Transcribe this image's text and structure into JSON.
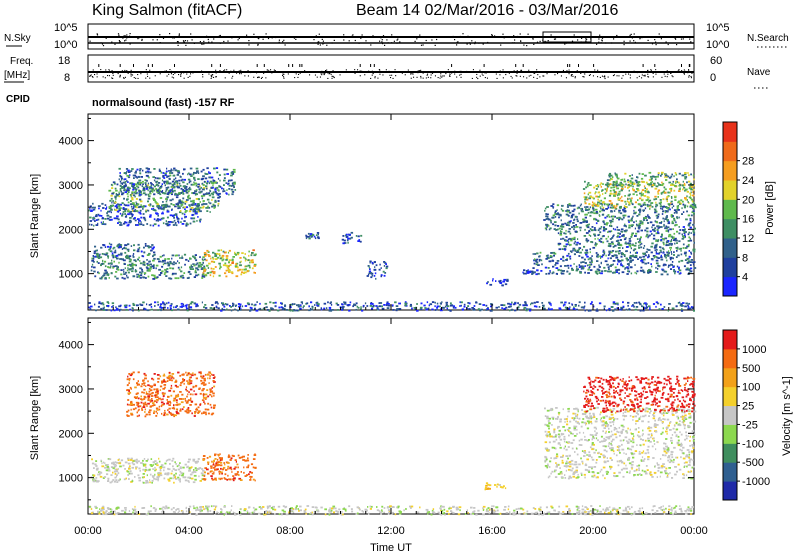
{
  "header": {
    "title": "King Salmon (fitACF)",
    "beam_info": "Beam 14 02/Mar/2016 - 03/Mar/2016"
  },
  "strip_labels": {
    "nsky": "N.Sky",
    "nsky_ticks": [
      "10^5",
      "10^0"
    ],
    "nsearch": "N.Search",
    "nsearch_ticks": [
      "10^5",
      "10^0"
    ],
    "freq_line1": "Freq.",
    "freq_line2": "[MHz]",
    "freq_ticks": [
      "18",
      "8"
    ],
    "nave": "Nave",
    "nave_ticks": [
      "60",
      "0"
    ],
    "cpid": "CPID",
    "cpid_text": "normalsound (fast) -157 RF"
  },
  "colors": {
    "power_scale": [
      "#1a25ff",
      "#1f3f9e",
      "#30608a",
      "#3e8e63",
      "#5fb94c",
      "#e2d22a",
      "#f59d1f",
      "#ef6a1a",
      "#e8321a"
    ],
    "velocity_scale": [
      "#e41a1a",
      "#f46b12",
      "#f2a119",
      "#f4d02c",
      "#c6c6c6",
      "#8cd84f",
      "#3f8e5e",
      "#2f5f90",
      "#1f2aa8"
    ]
  },
  "chart_data": [
    {
      "type": "heatmap",
      "name": "power-panel",
      "x": [
        "00:00",
        "04:00",
        "08:00",
        "12:00",
        "16:00",
        "20:00",
        "00:00"
      ],
      "xlabel": "Time UT",
      "ylabel": "Slant Range [km]",
      "yticks": [
        "1000",
        "2000",
        "3000",
        "4000"
      ],
      "xlim": [
        0,
        24
      ],
      "ylim": [
        180,
        4600
      ],
      "colorbar": {
        "label": "Power [dB]",
        "ticks": [
          "4",
          "8",
          "12",
          "16",
          "20",
          "24",
          "28"
        ],
        "range": [
          0,
          30
        ]
      },
      "regions": [
        {
          "t0": 0.1,
          "t1": 4.6,
          "r0": 900,
          "r1": 1450,
          "dominant": 10
        },
        {
          "t0": 0.2,
          "t1": 2.6,
          "r0": 1400,
          "r1": 1700,
          "dominant": 7
        },
        {
          "t0": 0.0,
          "t1": 4.5,
          "r0": 2100,
          "r1": 2600,
          "dominant": 6
        },
        {
          "t0": 0.8,
          "t1": 5.2,
          "r0": 2400,
          "r1": 3100,
          "dominant": 12
        },
        {
          "t0": 1.2,
          "t1": 5.8,
          "r0": 2800,
          "r1": 3400,
          "dominant": 8
        },
        {
          "t0": 4.5,
          "t1": 6.6,
          "r0": 950,
          "r1": 1550,
          "dominant": 18
        },
        {
          "t0": 8.6,
          "t1": 9.1,
          "r0": 1800,
          "r1": 1950,
          "dominant": 7
        },
        {
          "t0": 10.0,
          "t1": 10.8,
          "r0": 1700,
          "r1": 1950,
          "dominant": 7
        },
        {
          "t0": 11.0,
          "t1": 11.8,
          "r0": 900,
          "r1": 1300,
          "dominant": 6
        },
        {
          "t0": 15.7,
          "t1": 16.6,
          "r0": 750,
          "r1": 900,
          "dominant": 5
        },
        {
          "t0": 17.2,
          "t1": 17.8,
          "r0": 1000,
          "r1": 1100,
          "dominant": 5
        },
        {
          "t0": 17.6,
          "t1": 24.0,
          "r0": 1000,
          "r1": 1500,
          "dominant": 8
        },
        {
          "t0": 18.6,
          "t1": 24.0,
          "r0": 1500,
          "r1": 2000,
          "dominant": 9
        },
        {
          "t0": 18.0,
          "t1": 24.0,
          "r0": 2000,
          "r1": 2600,
          "dominant": 9
        },
        {
          "t0": 19.6,
          "t1": 24.0,
          "r0": 2500,
          "r1": 3100,
          "dominant": 16
        },
        {
          "t0": 20.5,
          "t1": 24.0,
          "r0": 3000,
          "r1": 3300,
          "dominant": 13
        },
        {
          "t0": 0.0,
          "t1": 24.0,
          "r0": 180,
          "r1": 380,
          "dominant": 6
        }
      ]
    },
    {
      "type": "heatmap",
      "name": "velocity-panel",
      "x": [
        "00:00",
        "04:00",
        "08:00",
        "12:00",
        "16:00",
        "20:00",
        "00:00"
      ],
      "xlabel": "Time UT",
      "ylabel": "Slant Range [km]",
      "yticks": [
        "1000",
        "2000",
        "3000",
        "4000"
      ],
      "xlim": [
        0,
        24
      ],
      "ylim": [
        180,
        4600
      ],
      "colorbar": {
        "label": "Velocity [m s^-1]",
        "ticks": [
          "1000",
          "500",
          "100",
          "25",
          "-25",
          "-100",
          "-500",
          "-1000"
        ]
      },
      "regions": [
        {
          "t0": 0.1,
          "t1": 4.6,
          "r0": 900,
          "r1": 1450,
          "dominant": "gray"
        },
        {
          "t0": 4.5,
          "t1": 6.6,
          "r0": 950,
          "r1": 1550,
          "dominant": "orange"
        },
        {
          "t0": 1.5,
          "t1": 5.0,
          "r0": 2400,
          "r1": 3400,
          "dominant": "orange"
        },
        {
          "t0": 18.0,
          "t1": 24.0,
          "r0": 1000,
          "r1": 2600,
          "dominant": "gray"
        },
        {
          "t0": 19.6,
          "t1": 24.0,
          "r0": 2500,
          "r1": 3300,
          "dominant": "red"
        },
        {
          "t0": 15.7,
          "t1": 16.6,
          "r0": 750,
          "r1": 900,
          "dominant": "yellow"
        },
        {
          "t0": 0.0,
          "t1": 24.0,
          "r0": 180,
          "r1": 380,
          "dominant": "gray"
        }
      ]
    }
  ],
  "axes": {
    "time_label": "Time UT",
    "time_ticks": [
      "00:00",
      "04:00",
      "08:00",
      "12:00",
      "16:00",
      "20:00",
      "00:00"
    ],
    "range_label": "Slant Range [km]",
    "range_ticks": [
      "1000",
      "2000",
      "3000",
      "4000"
    ]
  }
}
